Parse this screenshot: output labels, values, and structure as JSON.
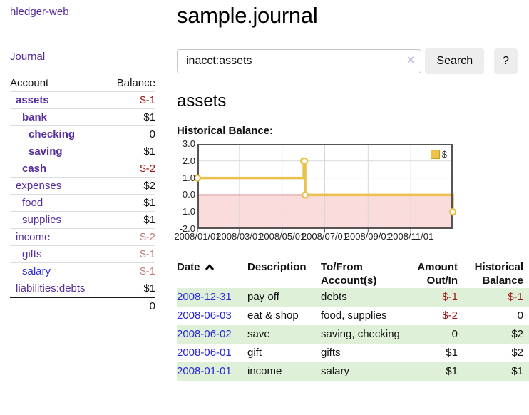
{
  "sidebar": {
    "brand": "hledger-web",
    "nav_journal": "Journal",
    "accounts": {
      "col_account": "Account",
      "col_balance": "Balance",
      "rows": [
        {
          "name": "assets",
          "indent": 0,
          "bold": true,
          "link_color": "purple",
          "balance": "$-1",
          "balance_color": "strong-negative"
        },
        {
          "name": "bank",
          "indent": 1,
          "bold": true,
          "link_color": "purple",
          "balance": "$1",
          "balance_color": ""
        },
        {
          "name": "checking",
          "indent": 2,
          "bold": true,
          "link_color": "purple",
          "balance": "0",
          "balance_color": ""
        },
        {
          "name": "saving",
          "indent": 2,
          "bold": true,
          "link_color": "purple",
          "balance": "$1",
          "balance_color": ""
        },
        {
          "name": "cash",
          "indent": 1,
          "bold": true,
          "link_color": "purple",
          "balance": "$-2",
          "balance_color": "strong-negative"
        },
        {
          "name": "expenses",
          "indent": 0,
          "bold": false,
          "link_color": "purple",
          "balance": "$2",
          "balance_color": ""
        },
        {
          "name": "food",
          "indent": 1,
          "bold": false,
          "link_color": "purple",
          "balance": "$1",
          "balance_color": ""
        },
        {
          "name": "supplies",
          "indent": 1,
          "bold": false,
          "link_color": "purple",
          "balance": "$1",
          "balance_color": ""
        },
        {
          "name": "income",
          "indent": 0,
          "bold": false,
          "link_color": "purple",
          "balance": "$-2",
          "balance_color": "soft-negative"
        },
        {
          "name": "gifts",
          "indent": 1,
          "bold": false,
          "link_color": "purple",
          "balance": "$-1",
          "balance_color": "soft-negative"
        },
        {
          "name": "salary",
          "indent": 1,
          "bold": false,
          "link_color": "blue",
          "balance": "$-1",
          "balance_color": "soft-negative"
        },
        {
          "name": "liabilities:debts",
          "indent": 0,
          "bold": false,
          "link_color": "purple",
          "balance": "$1",
          "balance_color": ""
        }
      ],
      "total": "0"
    }
  },
  "main": {
    "title": "sample.journal",
    "search": {
      "value": "inacct:assets",
      "clear_glyph": "×",
      "button_label": "Search",
      "help_label": "?"
    },
    "account_heading": "assets",
    "chart_label": "Historical Balance:",
    "register": {
      "headers": [
        "Date",
        "Description",
        "To/From Account(s)",
        "Amount Out/In",
        "Historical Balance"
      ],
      "rows": [
        {
          "date": "2008-12-31",
          "description": "pay off",
          "accounts": "debts",
          "amount": "$-1",
          "amount_negative": true,
          "balance": "$-1",
          "balance_negative": true
        },
        {
          "date": "2008-06-03",
          "description": "eat & shop",
          "accounts": "food, supplies",
          "amount": "$-2",
          "amount_negative": true,
          "balance": "0",
          "balance_negative": false
        },
        {
          "date": "2008-06-02",
          "description": "save",
          "accounts": "saving, checking",
          "amount": "0",
          "amount_negative": false,
          "balance": "$2",
          "balance_negative": false
        },
        {
          "date": "2008-06-01",
          "description": "gift",
          "accounts": "gifts",
          "amount": "$1",
          "amount_negative": false,
          "balance": "$2",
          "balance_negative": false
        },
        {
          "date": "2008-01-01",
          "description": "income",
          "accounts": "salary",
          "amount": "$1",
          "amount_negative": false,
          "balance": "$1",
          "balance_negative": false
        }
      ]
    }
  },
  "chart_data": {
    "type": "line",
    "step": true,
    "title": "Historical Balance:",
    "series": [
      {
        "name": "$",
        "points": [
          [
            "2008-01-01",
            1
          ],
          [
            "2008-06-01",
            2
          ],
          [
            "2008-06-02",
            2
          ],
          [
            "2008-06-03",
            0
          ],
          [
            "2008-12-31",
            -1
          ]
        ]
      }
    ],
    "x_range": [
      "2008-01-01",
      "2008-12-31"
    ],
    "ylim": [
      -2,
      3
    ],
    "yticks": [
      {
        "value": 3,
        "label": "3.0"
      },
      {
        "value": 2,
        "label": "2.0"
      },
      {
        "value": 1,
        "label": "1.0"
      },
      {
        "value": 0,
        "label": "0.0"
      },
      {
        "value": -1,
        "label": "-1.0"
      },
      {
        "value": -2,
        "label": "-2.0"
      }
    ],
    "xticks": [
      {
        "date": "2008-01-01",
        "label": "2008/01/01"
      },
      {
        "date": "2008-03-01",
        "label": "2008/03/01"
      },
      {
        "date": "2008-05-01",
        "label": "2008/05/01"
      },
      {
        "date": "2008-07-01",
        "label": "2008/07/01"
      },
      {
        "date": "2008-09-01",
        "label": "2008/09/01"
      },
      {
        "date": "2008-11-01",
        "label": "2008/11/01"
      }
    ],
    "legend": {
      "label": "$",
      "position": "top-right"
    },
    "grid": true,
    "colors": {
      "line": "#e9c24d",
      "marker_fill": "#ffffff",
      "negative_region": "#fbdcdc",
      "zero_line": "#8f0d0d",
      "grid": "#d8d8d8",
      "border": "#555555"
    }
  }
}
